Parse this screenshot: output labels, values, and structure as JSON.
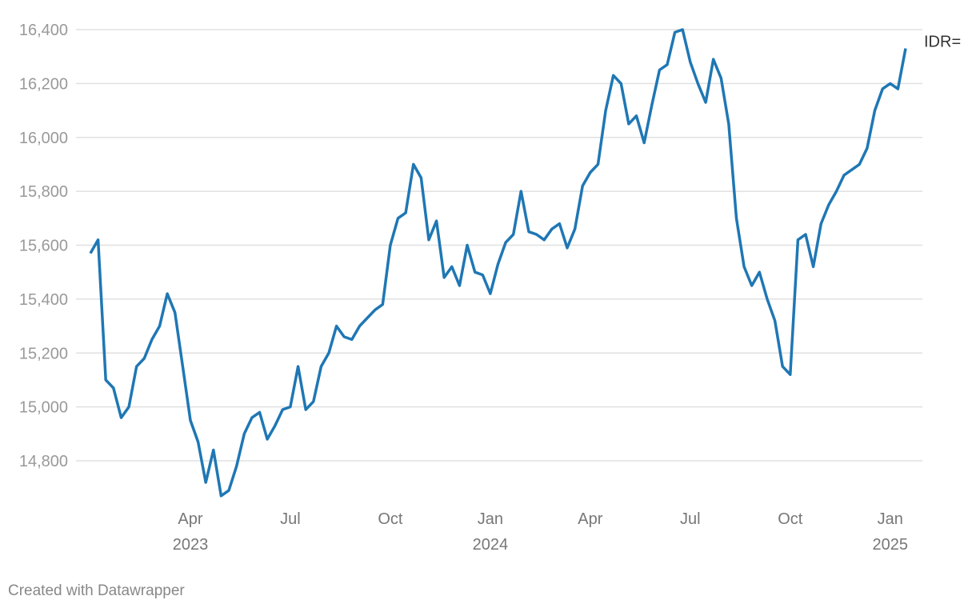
{
  "chart_data": {
    "type": "line",
    "categories": [
      null,
      null,
      null,
      null,
      null,
      null,
      null,
      null,
      null,
      null,
      null,
      null,
      null,
      "Apr 2023",
      null,
      null,
      null,
      null,
      null,
      null,
      null,
      null,
      null,
      null,
      null,
      null,
      "Jul",
      null,
      null,
      null,
      null,
      null,
      null,
      null,
      null,
      null,
      null,
      null,
      null,
      "Oct",
      null,
      null,
      null,
      null,
      null,
      null,
      null,
      null,
      null,
      null,
      null,
      null,
      "Jan 2024",
      null,
      null,
      null,
      null,
      null,
      null,
      null,
      null,
      null,
      null,
      null,
      null,
      "Apr",
      null,
      null,
      null,
      null,
      null,
      null,
      null,
      null,
      null,
      null,
      null,
      null,
      "Jul",
      null,
      null,
      null,
      null,
      null,
      null,
      null,
      null,
      null,
      null,
      null,
      null,
      "Oct",
      null,
      null,
      null,
      null,
      null,
      null,
      null,
      null,
      null,
      null,
      null,
      null,
      "Jan 2025",
      null,
      null
    ],
    "series": [
      {
        "name": "IDR=",
        "color": "#1f77b4",
        "values": [
          15570,
          15620,
          15100,
          15070,
          14960,
          15000,
          15150,
          15180,
          15250,
          15300,
          15420,
          15350,
          15150,
          14950,
          14870,
          14720,
          14840,
          14670,
          14690,
          14780,
          14900,
          14960,
          14980,
          14880,
          14930,
          14990,
          15000,
          15150,
          14990,
          15020,
          15150,
          15200,
          15300,
          15260,
          15250,
          15300,
          15330,
          15360,
          15380,
          15600,
          15700,
          15720,
          15900,
          15850,
          15620,
          15690,
          15480,
          15520,
          15450,
          15600,
          15500,
          15490,
          15420,
          15530,
          15610,
          15640,
          15800,
          15650,
          15640,
          15620,
          15660,
          15680,
          15590,
          15660,
          15820,
          15870,
          15900,
          16100,
          16230,
          16200,
          16050,
          16080,
          15980,
          16120,
          16250,
          16270,
          16390,
          16400,
          16280,
          16200,
          16130,
          16290,
          16220,
          16050,
          15700,
          15520,
          15450,
          15500,
          15400,
          15320,
          15150,
          15120,
          15620,
          15640,
          15520,
          15680,
          15750,
          15800,
          15860,
          15880,
          15900,
          15960,
          16100,
          16180,
          16200,
          16180,
          16330
        ]
      }
    ],
    "ylim": [
      14650,
      16450
    ],
    "yticks": [
      {
        "value": 14800,
        "label": "14,800"
      },
      {
        "value": 15000,
        "label": "15,000"
      },
      {
        "value": 15200,
        "label": "15,200"
      },
      {
        "value": 15400,
        "label": "15,400"
      },
      {
        "value": 15600,
        "label": "15,600"
      },
      {
        "value": 15800,
        "label": "15,800"
      },
      {
        "value": 16000,
        "label": "16,000"
      },
      {
        "value": 16200,
        "label": "16,200"
      },
      {
        "value": 16400,
        "label": "16,400"
      }
    ],
    "grid": true,
    "footer": "Created with Datawrapper"
  }
}
